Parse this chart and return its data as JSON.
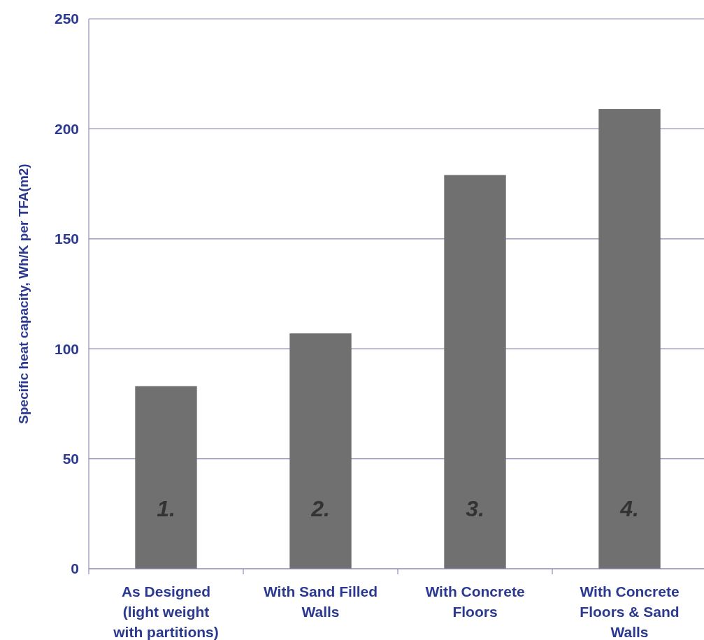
{
  "chart_data": {
    "type": "bar",
    "ylabel": "Specific heat capacity, Wh/K per TFA(m2)",
    "categories": [
      "As Designed (light weight with partitions)",
      "With Sand Filled Walls",
      "With Concrete Floors",
      "With Concrete Floors & Sand Walls"
    ],
    "values": [
      83,
      107,
      179,
      209
    ],
    "color": "#707070",
    "ylim": [
      0,
      250
    ],
    "yticks": [
      0,
      50,
      100,
      150,
      200,
      250
    ],
    "grid": "y",
    "annotations": [
      "1.",
      "2.",
      "3.",
      "4."
    ]
  }
}
